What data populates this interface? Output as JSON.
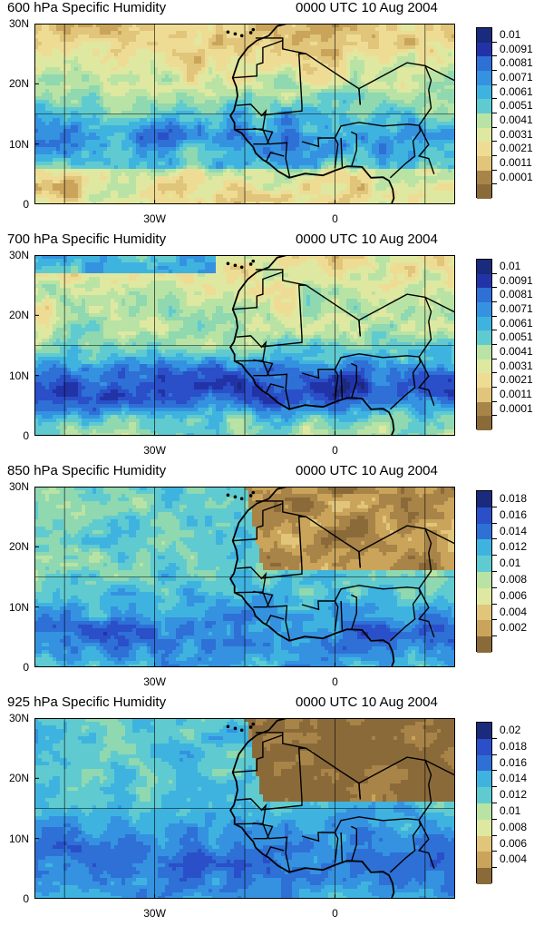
{
  "panels": [
    {
      "title": "600 hPa Specific Humidity",
      "time": "0000 UTC 10 Aug 2004",
      "lat_labels": [
        "30N",
        "20N",
        "10N",
        "0"
      ],
      "lon_labels": [
        "30W",
        "0"
      ],
      "colorbar_labels": [
        "0.01",
        "0.0091",
        "0.0081",
        "0.0071",
        "0.0061",
        "0.0051",
        "0.0041",
        "0.0031",
        "0.0021",
        "0.0011",
        "0.0001"
      ],
      "field_level": 0.32
    },
    {
      "title": "700 hPa Specific Humidity",
      "time": "0000 UTC 10 Aug 2004",
      "lat_labels": [
        "30N",
        "20N",
        "10N",
        "0"
      ],
      "lon_labels": [
        "30W",
        "0"
      ],
      "colorbar_labels": [
        "0.01",
        "0.0091",
        "0.0081",
        "0.0071",
        "0.0061",
        "0.0051",
        "0.0041",
        "0.0031",
        "0.0021",
        "0.0011",
        "0.0001"
      ],
      "field_level": 0.55
    },
    {
      "title": "850 hPa Specific Humidity",
      "time": "0000 UTC 10 Aug 2004",
      "lat_labels": [
        "30N",
        "20N",
        "10N",
        "0"
      ],
      "lon_labels": [
        "30W",
        "0"
      ],
      "colorbar_labels": [
        "0.018",
        "0.016",
        "0.014",
        "0.012",
        "0.01",
        "0.008",
        "0.006",
        "0.004",
        "0.002"
      ],
      "field_level": 0.5
    },
    {
      "title": "925 hPa Specific Humidity",
      "time": "0000 UTC 10 Aug 2004",
      "lat_labels": [
        "30N",
        "20N",
        "10N",
        "0"
      ],
      "lon_labels": [
        "30W",
        "0"
      ],
      "colorbar_labels": [
        "0.02",
        "0.018",
        "0.016",
        "0.014",
        "0.012",
        "0.01",
        "0.008",
        "0.006",
        "0.004"
      ],
      "field_level": 0.5
    }
  ],
  "colors": {
    "palette": [
      "#8b6a3a",
      "#a98448",
      "#c9a45a",
      "#e0c57a",
      "#eedc95",
      "#dfe8a0",
      "#b9e3a4",
      "#8fd8b0",
      "#5fcbd0",
      "#3fb3e0",
      "#3592e0",
      "#2e70d6",
      "#2a4fc8",
      "#2233a8",
      "#1a2a7c"
    ],
    "border": "#000000",
    "grid": "#000000"
  }
}
